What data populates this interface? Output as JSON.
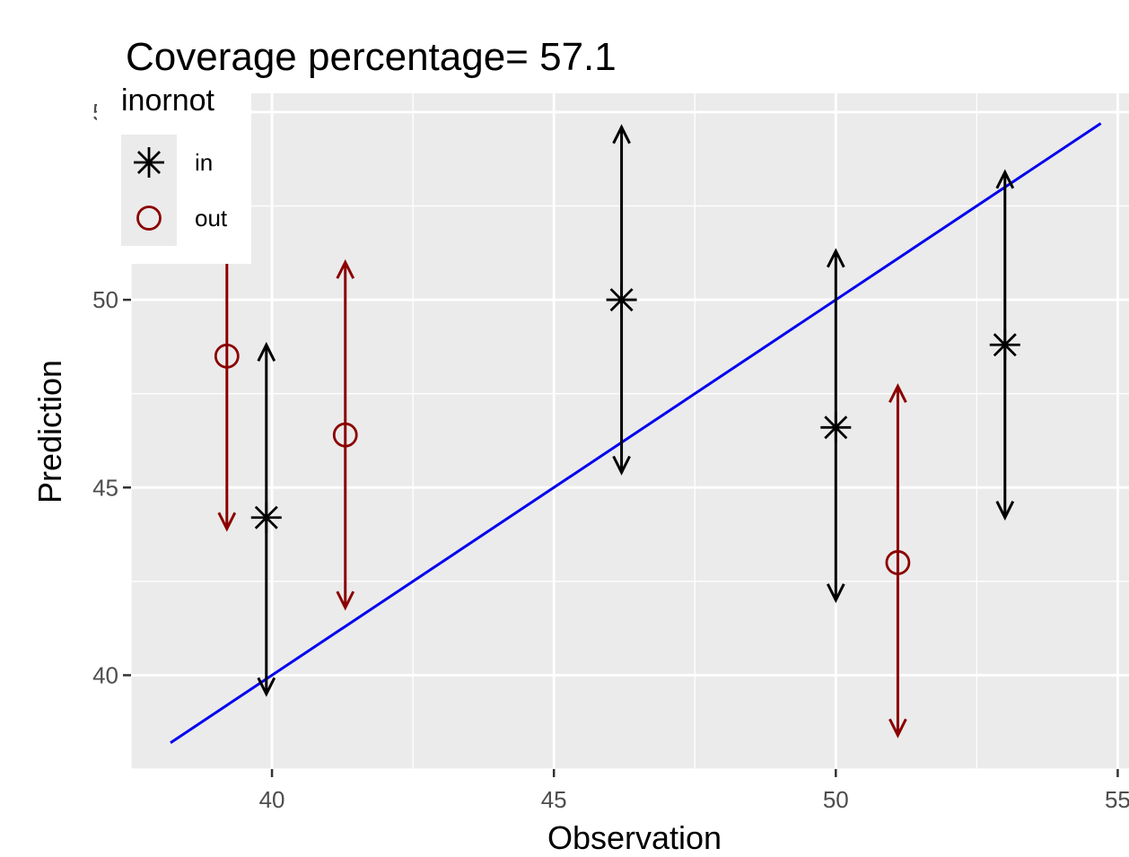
{
  "chart_data": {
    "type": "scatter",
    "title": "Coverage percentage= 57.1",
    "xlabel": "Observation",
    "ylabel": "Prediction",
    "xlim": [
      37.5,
      55.2
    ],
    "ylim": [
      37.5,
      55.5
    ],
    "x_ticks": [
      40,
      45,
      50,
      55
    ],
    "y_ticks": [
      40,
      45,
      50,
      55
    ],
    "grid": true,
    "legend": {
      "title": "inornot",
      "placement": "top-left",
      "entries": [
        {
          "label": "in",
          "shape": "asterisk",
          "color": "#000000"
        },
        {
          "label": "out",
          "shape": "circle",
          "color": "#8b0000"
        }
      ]
    },
    "reference_line": {
      "type": "y=x",
      "x_from": 38.2,
      "x_to": 54.7,
      "color": "#0000ee"
    },
    "points": [
      {
        "x": 39.2,
        "y": 48.5,
        "lower": 43.9,
        "upper": 53.3,
        "group": "out"
      },
      {
        "x": 39.9,
        "y": 44.2,
        "lower": 39.5,
        "upper": 48.8,
        "group": "in"
      },
      {
        "x": 41.3,
        "y": 46.4,
        "lower": 41.8,
        "upper": 51.0,
        "group": "out"
      },
      {
        "x": 46.2,
        "y": 50.0,
        "lower": 45.4,
        "upper": 54.6,
        "group": "in"
      },
      {
        "x": 50.0,
        "y": 46.6,
        "lower": 42.0,
        "upper": 51.3,
        "group": "in"
      },
      {
        "x": 51.1,
        "y": 43.0,
        "lower": 38.4,
        "upper": 47.7,
        "group": "out"
      },
      {
        "x": 53.0,
        "y": 48.8,
        "lower": 44.2,
        "upper": 53.4,
        "group": "in"
      }
    ]
  }
}
